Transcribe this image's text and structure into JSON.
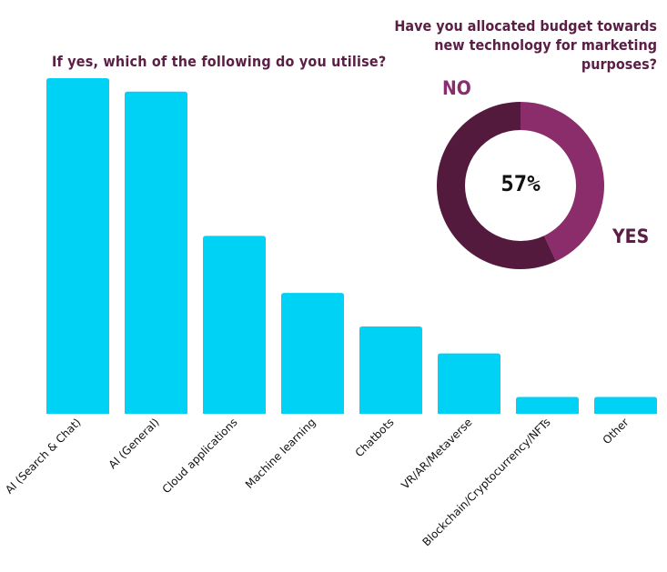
{
  "colors": {
    "bar": "#00d2f5",
    "title": "#5a1f45",
    "no": "#8b2c6b",
    "yes": "#531a3e"
  },
  "chart_data": [
    {
      "type": "bar",
      "title": "If yes, which of the following do you utilise?",
      "categories": [
        "AI (Search & Chat)",
        "AI (General)",
        "Cloud applications",
        "Machine learning",
        "Chatbots",
        "VR/AR/Metaverse",
        "Blockchain/Cryptocurrency/NFTs",
        "Other"
      ],
      "values": [
        100,
        96,
        53,
        36,
        26,
        18,
        5,
        5
      ],
      "xlabel": "",
      "ylabel": "",
      "ylim": [
        0,
        100
      ],
      "grid": false
    },
    {
      "type": "pie",
      "title": "Have you allocated budget towards new technology for marketing purposes?",
      "labels": [
        "YES",
        "NO"
      ],
      "values": [
        57,
        43
      ],
      "center_label": "57%",
      "donut": true
    }
  ]
}
